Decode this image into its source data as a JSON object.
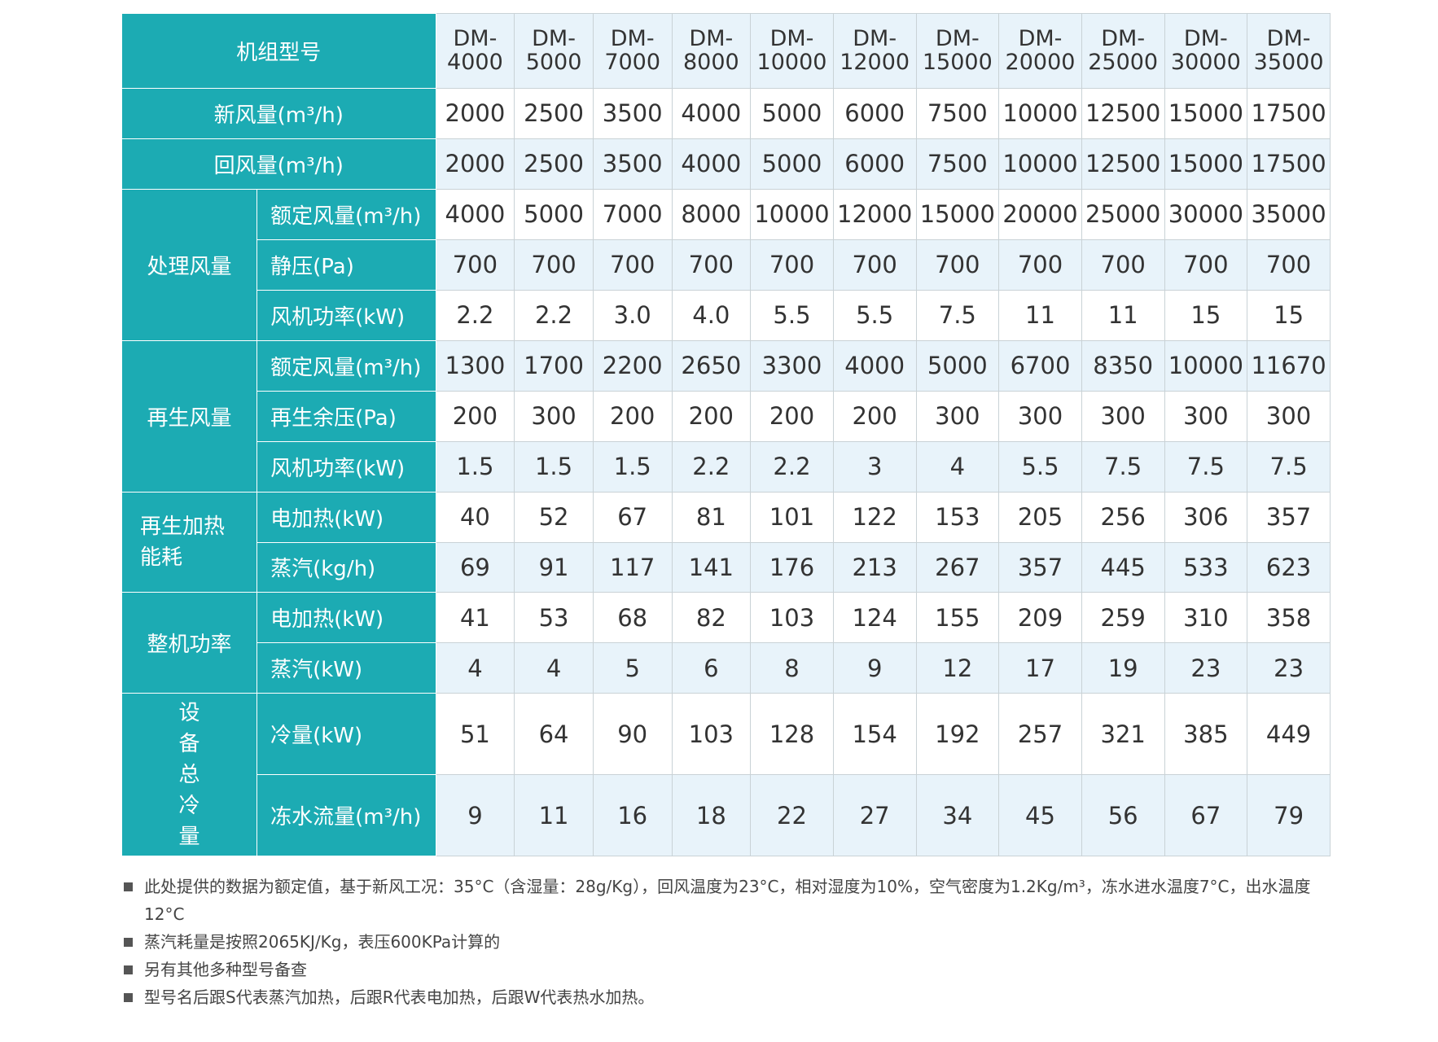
{
  "table": {
    "model_header": "机组型号",
    "models": [
      {
        "prefix": "DM-",
        "num": "4000"
      },
      {
        "prefix": "DM-",
        "num": "5000"
      },
      {
        "prefix": "DM-",
        "num": "7000"
      },
      {
        "prefix": "DM-",
        "num": "8000"
      },
      {
        "prefix": "DM-",
        "num": "10000"
      },
      {
        "prefix": "DM-",
        "num": "12000"
      },
      {
        "prefix": "DM-",
        "num": "15000"
      },
      {
        "prefix": "DM-",
        "num": "20000"
      },
      {
        "prefix": "DM-",
        "num": "25000"
      },
      {
        "prefix": "DM-",
        "num": "30000"
      },
      {
        "prefix": "DM-",
        "num": "35000"
      }
    ],
    "rows": [
      {
        "label": "新风量(m³/h)",
        "values": [
          "2000",
          "2500",
          "3500",
          "4000",
          "5000",
          "6000",
          "7500",
          "10000",
          "12500",
          "15000",
          "17500"
        ]
      },
      {
        "label": "回风量(m³/h)",
        "values": [
          "2000",
          "2500",
          "3500",
          "4000",
          "5000",
          "6000",
          "7500",
          "10000",
          "12500",
          "15000",
          "17500"
        ]
      },
      {
        "group": "处理风量",
        "label": "额定风量(m³/h)",
        "values": [
          "4000",
          "5000",
          "7000",
          "8000",
          "10000",
          "12000",
          "15000",
          "20000",
          "25000",
          "30000",
          "35000"
        ]
      },
      {
        "group": "处理风量",
        "label": "静压(Pa)",
        "values": [
          "700",
          "700",
          "700",
          "700",
          "700",
          "700",
          "700",
          "700",
          "700",
          "700",
          "700"
        ]
      },
      {
        "group": "处理风量",
        "label": "风机功率(kW)",
        "values": [
          "2.2",
          "2.2",
          "3.0",
          "4.0",
          "5.5",
          "5.5",
          "7.5",
          "11",
          "11",
          "15",
          "15"
        ]
      },
      {
        "group": "再生风量",
        "label": "额定风量(m³/h)",
        "values": [
          "1300",
          "1700",
          "2200",
          "2650",
          "3300",
          "4000",
          "5000",
          "6700",
          "8350",
          "10000",
          "11670"
        ]
      },
      {
        "group": "再生风量",
        "label": "再生余压(Pa)",
        "values": [
          "200",
          "300",
          "200",
          "200",
          "200",
          "200",
          "300",
          "300",
          "300",
          "300",
          "300"
        ]
      },
      {
        "group": "再生风量",
        "label": "风机功率(kW)",
        "values": [
          "1.5",
          "1.5",
          "1.5",
          "2.2",
          "2.2",
          "3",
          "4",
          "5.5",
          "7.5",
          "7.5",
          "7.5"
        ]
      },
      {
        "group": "再生加热能耗",
        "label": "电加热(kW)",
        "values": [
          "40",
          "52",
          "67",
          "81",
          "101",
          "122",
          "153",
          "205",
          "256",
          "306",
          "357"
        ]
      },
      {
        "group": "再生加热能耗",
        "label": "蒸汽(kg/h)",
        "values": [
          "69",
          "91",
          "117",
          "141",
          "176",
          "213",
          "267",
          "357",
          "445",
          "533",
          "623"
        ]
      },
      {
        "group": "整机功率",
        "label": "电加热(kW)",
        "values": [
          "41",
          "53",
          "68",
          "82",
          "103",
          "124",
          "155",
          "209",
          "259",
          "310",
          "358"
        ]
      },
      {
        "group": "整机功率",
        "label": "蒸汽(kW)",
        "values": [
          "4",
          "4",
          "5",
          "6",
          "8",
          "9",
          "12",
          "17",
          "19",
          "23",
          "23"
        ]
      },
      {
        "group": "设备总冷量",
        "label": "冷量(kW)",
        "values": [
          "51",
          "64",
          "90",
          "103",
          "128",
          "154",
          "192",
          "257",
          "321",
          "385",
          "449"
        ]
      },
      {
        "group": "设备总冷量",
        "label": "冻水流量(m³/h)",
        "values": [
          "9",
          "11",
          "16",
          "18",
          "22",
          "27",
          "34",
          "45",
          "56",
          "67",
          "79"
        ]
      }
    ],
    "groups": {
      "g1": "处理风量",
      "g2": "再生风量",
      "g3": "再生加热能耗",
      "g4": "整机功率",
      "g5": "设备总冷量"
    }
  },
  "notes": [
    "此处提供的数据为额定值，基于新风工况：35°C（含湿量：28g/Kg），回风温度为23°C，相对湿度为10%，空气密度为1.2Kg/m³，冻水进水温度7°C，出水温度12°C",
    "蒸汽耗量是按照2065KJ/Kg，表压600KPa计算的",
    "另有其他多种型号备查",
    "型号名后跟S代表蒸汽加热，后跟R代表电加热，后跟W代表热水加热。"
  ],
  "colors": {
    "header_teal": "#1cabb3",
    "row_alt": "#e8f3fa",
    "grid": "#c9d2d6"
  }
}
